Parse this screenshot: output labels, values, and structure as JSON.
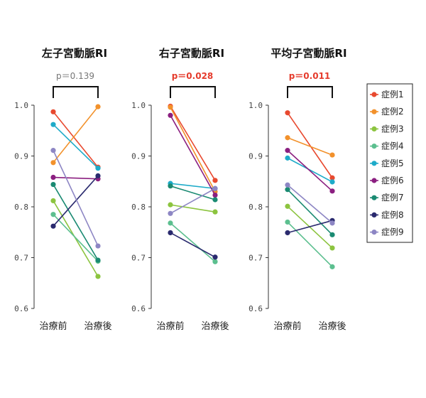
{
  "chart_data": [
    {
      "type": "line",
      "title": "左子宮動脈RI",
      "p_value": "p＝0.139",
      "significant": false,
      "categories": [
        "治療前",
        "治療後"
      ],
      "yticks": [
        "1.0",
        "0.9",
        "0.8",
        "0.7",
        "0.6"
      ],
      "ylim": [
        0.6,
        1.0
      ],
      "series": [
        {
          "name": "症例1",
          "values": [
            0.987,
            0.878
          ]
        },
        {
          "name": "症例2",
          "values": [
            0.887,
            0.997
          ]
        },
        {
          "name": "症例3",
          "values": [
            0.812,
            0.663
          ]
        },
        {
          "name": "症例4",
          "values": [
            0.785,
            0.693
          ]
        },
        {
          "name": "症例5",
          "values": [
            0.962,
            0.876
          ]
        },
        {
          "name": "症例6",
          "values": [
            0.858,
            0.855
          ]
        },
        {
          "name": "症例7",
          "values": [
            0.844,
            0.695
          ]
        },
        {
          "name": "症例8",
          "values": [
            0.762,
            0.861
          ]
        },
        {
          "name": "症例9",
          "values": [
            0.911,
            0.723
          ]
        }
      ]
    },
    {
      "type": "line",
      "title": "右子宮動脈RI",
      "p_value": "p＝0.028",
      "significant": true,
      "categories": [
        "治療前",
        "治療後"
      ],
      "yticks": [
        "1.0",
        "0.9",
        "0.8",
        "0.7",
        "0.6"
      ],
      "ylim": [
        0.6,
        1.0
      ],
      "series": [
        {
          "name": "症例1",
          "values": [
            0.998,
            0.852
          ]
        },
        {
          "name": "症例2",
          "values": [
            0.996,
            0.83
          ]
        },
        {
          "name": "症例3",
          "values": [
            0.804,
            0.79
          ]
        },
        {
          "name": "症例4",
          "values": [
            0.768,
            0.692
          ]
        },
        {
          "name": "症例5",
          "values": [
            0.846,
            0.836
          ]
        },
        {
          "name": "症例6",
          "values": [
            0.98,
            0.823
          ]
        },
        {
          "name": "症例7",
          "values": [
            0.841,
            0.814
          ]
        },
        {
          "name": "症例8",
          "values": [
            0.749,
            0.701
          ]
        },
        {
          "name": "症例9",
          "values": [
            0.787,
            0.836
          ]
        }
      ]
    },
    {
      "type": "line",
      "title": "平均子宮動脈RI",
      "p_value": "p＝0.011",
      "significant": true,
      "categories": [
        "治療前",
        "治療後"
      ],
      "yticks": [
        "1.0",
        "0.9",
        "0.8",
        "0.7",
        "0.6"
      ],
      "ylim": [
        0.6,
        1.0
      ],
      "series": [
        {
          "name": "症例1",
          "values": [
            0.985,
            0.857
          ]
        },
        {
          "name": "症例2",
          "values": [
            0.936,
            0.902
          ]
        },
        {
          "name": "症例3",
          "values": [
            0.801,
            0.719
          ]
        },
        {
          "name": "症例4",
          "values": [
            0.77,
            0.682
          ]
        },
        {
          "name": "症例5",
          "values": [
            0.896,
            0.849
          ]
        },
        {
          "name": "症例6",
          "values": [
            0.911,
            0.831
          ]
        },
        {
          "name": "症例7",
          "values": [
            0.834,
            0.745
          ]
        },
        {
          "name": "症例8",
          "values": [
            0.749,
            0.773
          ]
        },
        {
          "name": "症例9",
          "values": [
            0.843,
            0.768
          ]
        }
      ]
    }
  ],
  "legend": {
    "position": "right",
    "items": [
      {
        "label": "症例1",
        "color": "#e8492f"
      },
      {
        "label": "症例2",
        "color": "#f2912b"
      },
      {
        "label": "症例3",
        "color": "#8cc43f"
      },
      {
        "label": "症例4",
        "color": "#5cbf8f"
      },
      {
        "label": "症例5",
        "color": "#1eabc9"
      },
      {
        "label": "症例6",
        "color": "#8b1f80"
      },
      {
        "label": "症例7",
        "color": "#1a8a72"
      },
      {
        "label": "症例8",
        "color": "#2a2a6e"
      },
      {
        "label": "症例9",
        "color": "#8d86c4"
      }
    ]
  }
}
